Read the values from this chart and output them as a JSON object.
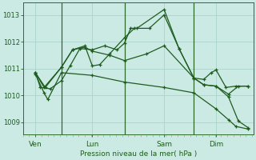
{
  "background_color": "#cceae4",
  "grid_color": "#aad4cc",
  "line_color": "#1e5c1e",
  "xlabel": "Pression niveau de la mer( hPa )",
  "yticks": [
    1009,
    1010,
    1011,
    1012,
    1013
  ],
  "ylim": [
    1008.55,
    1013.45
  ],
  "xlim": [
    0,
    9.3
  ],
  "xtick_positions": [
    0.5,
    2.8,
    5.7,
    7.8
  ],
  "xtick_labels": [
    "Ven",
    "Lun",
    "Sam",
    "Dim"
  ],
  "vlines": [
    1.55,
    4.1,
    6.9
  ],
  "series": [
    {
      "x": [
        0.5,
        0.7,
        1.1,
        1.55,
        1.9,
        2.3,
        2.8,
        3.3,
        3.8,
        4.1,
        4.35,
        4.6,
        5.7,
        6.3,
        6.9,
        7.3,
        7.6,
        7.8,
        8.2,
        8.6,
        9.1
      ],
      "y": [
        1010.85,
        1010.3,
        1010.25,
        1010.55,
        1011.1,
        1011.75,
        1011.7,
        1011.85,
        1011.7,
        1011.95,
        1012.5,
        1012.5,
        1013.2,
        1011.75,
        1010.65,
        1010.6,
        1010.85,
        1010.95,
        1010.3,
        1010.35,
        1010.35
      ]
    },
    {
      "x": [
        0.5,
        0.9,
        1.55,
        2.0,
        2.5,
        2.8,
        3.1,
        3.5,
        4.1,
        4.5,
        5.1,
        5.7,
        6.3,
        6.9,
        7.3,
        7.8,
        8.3,
        8.7,
        9.1
      ],
      "y": [
        1010.85,
        1010.3,
        1011.05,
        1011.7,
        1011.85,
        1011.1,
        1011.15,
        1011.55,
        1012.15,
        1012.5,
        1012.5,
        1013.0,
        1011.75,
        1010.65,
        1010.4,
        1010.35,
        1009.95,
        1009.05,
        1008.8
      ]
    },
    {
      "x": [
        0.5,
        0.85,
        1.55,
        2.0,
        2.5,
        2.8,
        3.5,
        4.1,
        5.0,
        5.7,
        6.9,
        7.3,
        7.8,
        8.3,
        8.7,
        9.1
      ],
      "y": [
        1010.85,
        1010.3,
        1011.05,
        1011.7,
        1011.8,
        1011.65,
        1011.5,
        1011.3,
        1011.55,
        1011.85,
        1010.65,
        1010.4,
        1010.35,
        1010.05,
        1010.35,
        1010.35
      ]
    },
    {
      "x": [
        0.5,
        0.85,
        1.0,
        1.55,
        2.8,
        4.1,
        5.7,
        6.9,
        7.8,
        8.3,
        8.6,
        9.1
      ],
      "y": [
        1010.8,
        1010.1,
        1009.85,
        1010.85,
        1010.75,
        1010.5,
        1010.3,
        1010.1,
        1009.5,
        1009.1,
        1008.85,
        1008.75
      ]
    }
  ]
}
